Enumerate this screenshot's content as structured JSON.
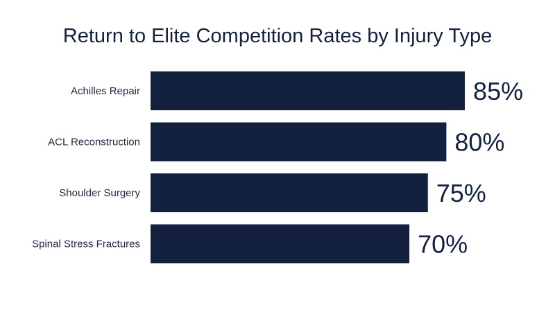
{
  "chart_data": {
    "type": "bar",
    "orientation": "horizontal",
    "title": "Return to Elite Competition Rates by Injury Type",
    "xlabel": "",
    "ylabel": "",
    "categories": [
      "Achilles Repair",
      "ACL Reconstruction",
      "Shoulder Surgery",
      "Spinal Stress Fractures"
    ],
    "values": [
      85,
      80,
      75,
      70
    ],
    "data_labels": [
      "85%",
      "80%",
      "75%",
      "70%"
    ],
    "unit": "%",
    "xlim": [
      0,
      100
    ],
    "grid": false,
    "legend": "none",
    "bar_color": "#13213f"
  }
}
